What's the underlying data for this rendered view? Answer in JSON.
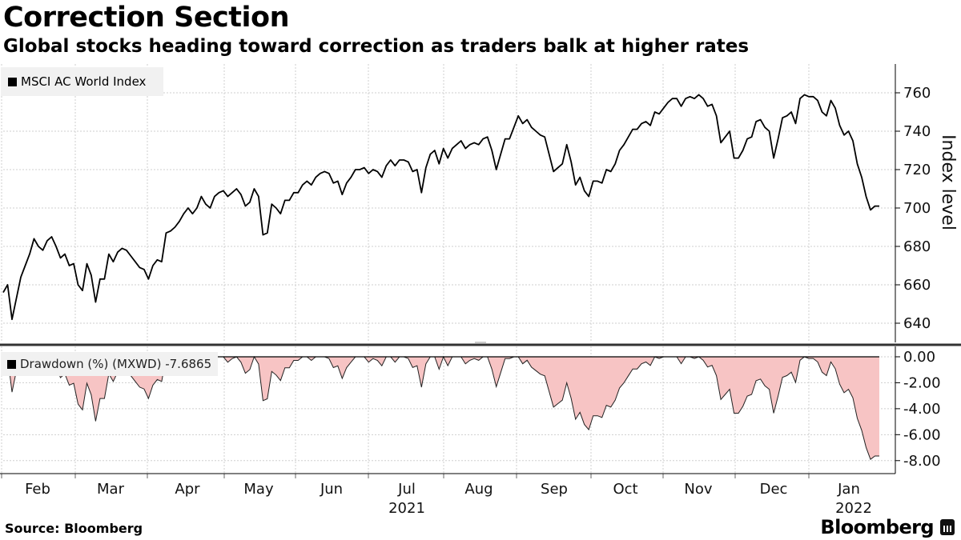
{
  "title": "Correction Section",
  "subtitle": "Global stocks heading toward correction as traders balk at higher rates",
  "source": "Source: Bloomberg",
  "brand": "Bloomberg",
  "colors": {
    "line": "#000000",
    "drawdown_top": "#e60000",
    "drawdown_bottom": "#f7c4c4",
    "grid": "#cfcfcf"
  },
  "chart_data": [
    {
      "type": "line",
      "title": "MSCI AC World Index",
      "legend": "MSCI AC World Index",
      "ylabel": "Index level",
      "ylim": [
        630,
        775
      ],
      "yticks": [
        640,
        660,
        680,
        700,
        720,
        740,
        760
      ],
      "series": [
        {
          "name": "MSCI AC World Index",
          "values": [
            656,
            660,
            642,
            653,
            664,
            670,
            676,
            684,
            680,
            678,
            683,
            685,
            680,
            674,
            676,
            670,
            671,
            660,
            657,
            671,
            665,
            651,
            663,
            663,
            676,
            672,
            677,
            679,
            678,
            675,
            672,
            669,
            668,
            663,
            670,
            673,
            672,
            687,
            688,
            690,
            693,
            697,
            700,
            697,
            700,
            706,
            702,
            700,
            706,
            708,
            709,
            706,
            708,
            710,
            707,
            701,
            703,
            710,
            706,
            686,
            687,
            702,
            700,
            697,
            704,
            704,
            708,
            708,
            712,
            714,
            712,
            716,
            718,
            719,
            718,
            713,
            714,
            707,
            713,
            716,
            720,
            720,
            721,
            718,
            720,
            719,
            716,
            722,
            725,
            722,
            725,
            725,
            724,
            719,
            720,
            708,
            721,
            728,
            730,
            723,
            731,
            726,
            731,
            733,
            735,
            731,
            733,
            734,
            733,
            736,
            737,
            730,
            720,
            728,
            736,
            736,
            742,
            748,
            744,
            746,
            742,
            740,
            738,
            737,
            728,
            719,
            721,
            723,
            733,
            724,
            712,
            716,
            709,
            706,
            714,
            714,
            713,
            720,
            719,
            723,
            730,
            733,
            737,
            741,
            741,
            744,
            745,
            743,
            750,
            749,
            752,
            755,
            757,
            757,
            753,
            757,
            758,
            757,
            759,
            757,
            753,
            754,
            748,
            734,
            737,
            740,
            726,
            726,
            730,
            736,
            737,
            745,
            746,
            742,
            740,
            726,
            736,
            747,
            748,
            750,
            744,
            757,
            759,
            758,
            758,
            756,
            750,
            748,
            756,
            752,
            743,
            738,
            740,
            735,
            723,
            716,
            706,
            699,
            701,
            701
          ]
        }
      ]
    },
    {
      "type": "area",
      "title": "Drawdown (%) (MXWD) -7.6865",
      "legend": "Drawdown (%) (MXWD) -7.6865",
      "ylim": [
        -9,
        0.8
      ],
      "yticks": [
        0,
        -2,
        -4,
        -6,
        -8
      ],
      "ytick_labels": [
        "0.00",
        "-2.00",
        "-4.00",
        "-6.00",
        "-8.00"
      ],
      "x_months": [
        "Feb",
        "Mar",
        "Apr",
        "May",
        "Jun",
        "Jul",
        "Aug",
        "Sep",
        "Oct",
        "Nov",
        "Dec",
        "Jan"
      ],
      "x_years": [
        "2021",
        "2022"
      ]
    }
  ]
}
